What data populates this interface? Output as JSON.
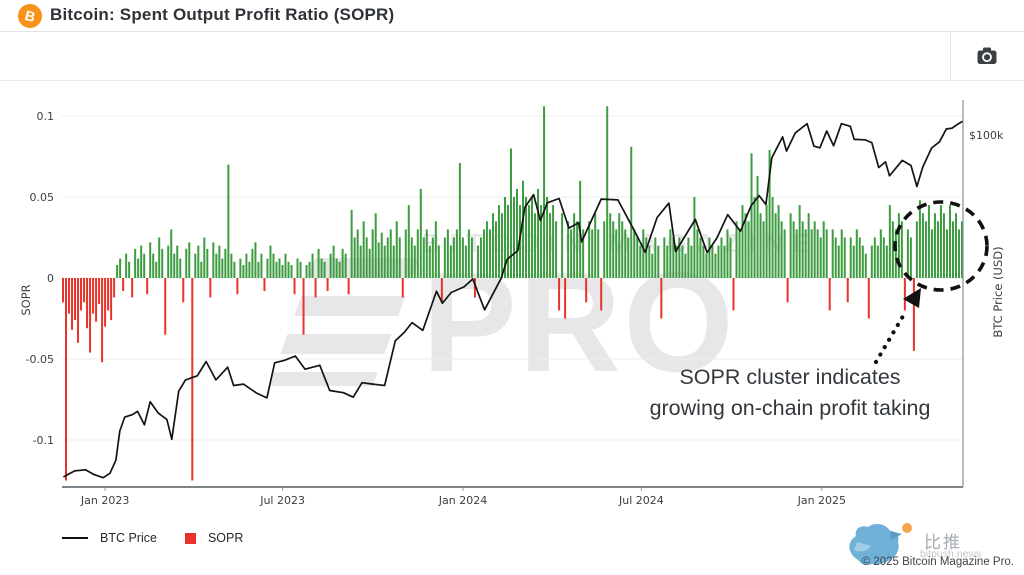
{
  "header": {
    "title": "Bitcoin: Spent Output Profit Ratio (SOPR)",
    "icon_glyph": "B"
  },
  "toolbar": {
    "camera_button_name": "screenshot"
  },
  "chart_data": {
    "type": "mixed-bar-line",
    "title": "Bitcoin: Spent Output Profit Ratio (SOPR)",
    "grid": "horizontal",
    "left_axis": {
      "label": "SOPR",
      "ticks": [
        {
          "label": "0.1",
          "value": 0.1
        },
        {
          "label": "0.05",
          "value": 0.05
        },
        {
          "label": "0",
          "value": 0
        },
        {
          "label": "-0.05",
          "value": -0.05
        },
        {
          "label": "-0.1",
          "value": -0.1
        }
      ],
      "range": [
        -0.135,
        0.112
      ]
    },
    "right_axis": {
      "label": "BTC Price (USD)",
      "ticks": [
        {
          "label": "$100k",
          "value_k": 100
        }
      ],
      "scale": "log"
    },
    "x_axis": {
      "start_date": "2022-11-18",
      "end_date": "2025-05-25",
      "ticks": [
        {
          "label": "Jan 2023",
          "date": "2023-01-01"
        },
        {
          "label": "Jul 2023",
          "date": "2023-07-01"
        },
        {
          "label": "Jan 2024",
          "date": "2024-01-01"
        },
        {
          "label": "Jul 2024",
          "date": "2024-07-01"
        },
        {
          "label": "Jan 2025",
          "date": "2025-01-01"
        }
      ]
    },
    "legend": [
      {
        "label": "BTC Price",
        "swatch": "black-line"
      },
      {
        "label": "SOPR",
        "swatch": "red-square"
      }
    ],
    "series": {
      "btc_price": {
        "name": "BTC Price",
        "type": "line",
        "color": "#141414",
        "points_date_priceK": [
          [
            "2022-11-20",
            16.6
          ],
          [
            "2022-12-01",
            17.1
          ],
          [
            "2022-12-12",
            17.2
          ],
          [
            "2022-12-20",
            16.8
          ],
          [
            "2022-12-30",
            16.5
          ],
          [
            "2023-01-06",
            16.9
          ],
          [
            "2023-01-12",
            18.1
          ],
          [
            "2023-01-16",
            21.1
          ],
          [
            "2023-01-21",
            22.7
          ],
          [
            "2023-01-29",
            23.0
          ],
          [
            "2023-02-03",
            23.4
          ],
          [
            "2023-02-10",
            21.8
          ],
          [
            "2023-02-16",
            24.6
          ],
          [
            "2023-02-24",
            23.2
          ],
          [
            "2023-03-05",
            22.4
          ],
          [
            "2023-03-10",
            20.2
          ],
          [
            "2023-03-17",
            26.0
          ],
          [
            "2023-03-24",
            27.6
          ],
          [
            "2023-04-05",
            28.2
          ],
          [
            "2023-04-14",
            30.4
          ],
          [
            "2023-04-24",
            27.6
          ],
          [
            "2023-05-06",
            29.5
          ],
          [
            "2023-05-12",
            26.8
          ],
          [
            "2023-05-22",
            27.0
          ],
          [
            "2023-06-05",
            25.7
          ],
          [
            "2023-06-15",
            25.1
          ],
          [
            "2023-06-23",
            30.2
          ],
          [
            "2023-07-03",
            30.6
          ],
          [
            "2023-07-14",
            31.3
          ],
          [
            "2023-07-24",
            29.2
          ],
          [
            "2023-08-08",
            29.8
          ],
          [
            "2023-08-18",
            26.1
          ],
          [
            "2023-09-01",
            25.8
          ],
          [
            "2023-09-11",
            25.2
          ],
          [
            "2023-09-20",
            27.2
          ],
          [
            "2023-10-01",
            27.0
          ],
          [
            "2023-10-13",
            26.8
          ],
          [
            "2023-10-24",
            33.9
          ],
          [
            "2023-11-02",
            35.4
          ],
          [
            "2023-11-10",
            37.3
          ],
          [
            "2023-11-21",
            35.8
          ],
          [
            "2023-12-05",
            44.0
          ],
          [
            "2023-12-11",
            41.3
          ],
          [
            "2023-12-20",
            43.7
          ],
          [
            "2024-01-02",
            45.0
          ],
          [
            "2024-01-11",
            46.9
          ],
          [
            "2024-01-23",
            39.9
          ],
          [
            "2024-02-09",
            47.1
          ],
          [
            "2024-02-15",
            52.0
          ],
          [
            "2024-02-26",
            54.5
          ],
          [
            "2024-03-04",
            68.3
          ],
          [
            "2024-03-13",
            73.1
          ],
          [
            "2024-03-20",
            63.8
          ],
          [
            "2024-03-27",
            70.0
          ],
          [
            "2024-04-08",
            71.6
          ],
          [
            "2024-04-18",
            61.3
          ],
          [
            "2024-04-28",
            63.1
          ],
          [
            "2024-05-01",
            57.0
          ],
          [
            "2024-05-21",
            71.4
          ],
          [
            "2024-06-07",
            71.1
          ],
          [
            "2024-06-24",
            60.3
          ],
          [
            "2024-07-05",
            54.0
          ],
          [
            "2024-07-17",
            64.8
          ],
          [
            "2024-07-29",
            69.9
          ],
          [
            "2024-08-05",
            54.2
          ],
          [
            "2024-08-25",
            64.2
          ],
          [
            "2024-09-06",
            53.9
          ],
          [
            "2024-09-16",
            58.2
          ],
          [
            "2024-09-27",
            65.8
          ],
          [
            "2024-10-10",
            60.3
          ],
          [
            "2024-10-21",
            69.0
          ],
          [
            "2024-10-29",
            72.7
          ],
          [
            "2024-11-05",
            69.4
          ],
          [
            "2024-11-11",
            88.7
          ],
          [
            "2024-11-22",
            99.0
          ],
          [
            "2024-11-26",
            91.9
          ],
          [
            "2024-12-05",
            101.1
          ],
          [
            "2024-12-17",
            106.1
          ],
          [
            "2024-12-24",
            94.3
          ],
          [
            "2024-12-30",
            93.5
          ],
          [
            "2025-01-06",
            102.1
          ],
          [
            "2025-01-13",
            94.5
          ],
          [
            "2025-01-21",
            106.1
          ],
          [
            "2025-01-30",
            104.7
          ],
          [
            "2025-02-03",
            97.7
          ],
          [
            "2025-02-14",
            97.5
          ],
          [
            "2025-02-21",
            96.1
          ],
          [
            "2025-02-28",
            84.3
          ],
          [
            "2025-03-07",
            86.8
          ],
          [
            "2025-03-11",
            80.7
          ],
          [
            "2025-03-24",
            87.5
          ],
          [
            "2025-04-02",
            85.2
          ],
          [
            "2025-04-08",
            76.3
          ],
          [
            "2025-04-14",
            84.5
          ],
          [
            "2025-04-23",
            93.4
          ],
          [
            "2025-05-01",
            96.5
          ],
          [
            "2025-05-08",
            103.2
          ],
          [
            "2025-05-14",
            103.7
          ],
          [
            "2025-05-19",
            105.6
          ],
          [
            "2025-05-24",
            107.3
          ]
        ]
      },
      "sopr": {
        "name": "SOPR",
        "type": "bar",
        "color_positive": "#3d9c40",
        "color_negative": "#e8332a",
        "values": [
          -0.015,
          -0.125,
          -0.022,
          -0.032,
          -0.026,
          -0.04,
          -0.02,
          -0.015,
          -0.031,
          -0.046,
          -0.022,
          -0.027,
          -0.016,
          -0.052,
          -0.03,
          -0.02,
          -0.026,
          -0.012,
          0.008,
          0.012,
          -0.008,
          0.015,
          0.01,
          -0.012,
          0.018,
          0.012,
          0.02,
          0.015,
          -0.01,
          0.022,
          0.015,
          0.01,
          0.025,
          0.018,
          -0.035,
          0.02,
          0.03,
          0.015,
          0.02,
          0.012,
          -0.015,
          0.018,
          0.022,
          -0.125,
          0.015,
          0.02,
          0.01,
          0.025,
          0.018,
          -0.012,
          0.022,
          0.015,
          0.02,
          0.012,
          0.018,
          0.07,
          0.015,
          0.01,
          -0.01,
          0.012,
          0.008,
          0.015,
          0.01,
          0.018,
          0.022,
          0.01,
          0.015,
          -0.008,
          0.012,
          0.02,
          0.015,
          0.01,
          0.012,
          0.008,
          0.015,
          0.01,
          0.008,
          -0.01,
          0.012,
          0.01,
          -0.035,
          0.008,
          0.01,
          0.015,
          -0.012,
          0.018,
          0.012,
          0.01,
          -0.008,
          0.015,
          0.02,
          0.012,
          0.01,
          0.018,
          0.015,
          -0.01,
          0.042,
          0.025,
          0.03,
          0.02,
          0.035,
          0.025,
          0.018,
          0.03,
          0.04,
          0.022,
          0.028,
          0.02,
          0.025,
          0.03,
          0.02,
          0.035,
          0.025,
          -0.012,
          0.03,
          0.045,
          0.025,
          0.02,
          0.03,
          0.055,
          0.025,
          0.03,
          0.02,
          0.025,
          0.035,
          0.02,
          -0.015,
          0.025,
          0.03,
          0.02,
          0.025,
          0.03,
          0.071,
          0.025,
          0.02,
          0.03,
          0.025,
          -0.012,
          0.02,
          0.025,
          0.03,
          0.035,
          0.03,
          0.04,
          0.035,
          0.045,
          0.04,
          0.05,
          0.045,
          0.08,
          0.05,
          0.055,
          0.045,
          0.06,
          0.05,
          0.045,
          0.05,
          0.04,
          0.055,
          0.045,
          0.106,
          0.05,
          0.04,
          0.045,
          0.035,
          -0.02,
          0.04,
          -0.025,
          0.035,
          0.03,
          0.04,
          0.035,
          0.06,
          0.03,
          -0.015,
          0.035,
          0.03,
          0.04,
          0.03,
          -0.02,
          0.035,
          0.106,
          0.04,
          0.035,
          0.03,
          0.04,
          0.035,
          0.03,
          0.025,
          0.081,
          0.03,
          0.025,
          0.02,
          0.03,
          0.025,
          0.02,
          0.015,
          0.025,
          0.02,
          -0.025,
          0.025,
          0.02,
          0.03,
          0.025,
          0.02,
          0.025,
          0.02,
          0.015,
          0.025,
          0.02,
          0.05,
          0.03,
          0.025,
          0.02,
          0.015,
          0.025,
          0.02,
          0.015,
          0.02,
          0.025,
          0.02,
          0.03,
          0.025,
          -0.02,
          0.035,
          0.03,
          0.045,
          0.04,
          0.035,
          0.077,
          0.05,
          0.063,
          0.04,
          0.035,
          0.045,
          0.079,
          0.05,
          0.04,
          0.045,
          0.035,
          0.03,
          -0.015,
          0.04,
          0.035,
          0.03,
          0.045,
          0.035,
          0.03,
          0.04,
          0.03,
          0.035,
          0.03,
          0.025,
          0.035,
          0.03,
          -0.02,
          0.03,
          0.025,
          0.02,
          0.03,
          0.025,
          -0.015,
          0.025,
          0.02,
          0.03,
          0.025,
          0.02,
          0.015,
          -0.025,
          0.02,
          0.025,
          0.02,
          0.03,
          0.025,
          0.02,
          0.045,
          0.035,
          0.03,
          0.04,
          0.035,
          -0.02,
          0.03,
          0.025,
          -0.045,
          0.035,
          0.048,
          0.04,
          0.035,
          0.045,
          0.03,
          0.04,
          0.035,
          0.045,
          0.04,
          0.03,
          0.045,
          0.035,
          0.04,
          0.03,
          0.035
        ]
      }
    },
    "annotation": {
      "line1": "SOPR cluster indicates",
      "line2": "growing on-chain profit taking"
    },
    "watermark": {
      "line1": "BITCOIN MAGAZINE",
      "line2": "PRO"
    }
  },
  "footer": {
    "bitpush_name": "比推",
    "bitpush_domain": "bitpush.news",
    "copyright": "© 2025 Bitcoin Magazine Pro."
  }
}
